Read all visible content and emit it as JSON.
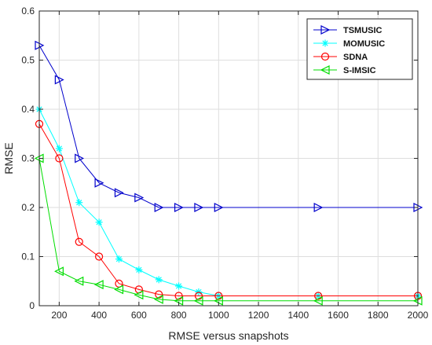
{
  "chart_data": {
    "type": "line",
    "title": "",
    "xlabel": "RMSE versus snapshots",
    "ylabel": "RMSE",
    "xlim": [
      100,
      2000
    ],
    "ylim": [
      0,
      0.6
    ],
    "xticks": [
      200,
      400,
      600,
      800,
      1000,
      1200,
      1400,
      1600,
      1800,
      2000
    ],
    "xtick_labels": [
      "200",
      "400",
      "600",
      "800",
      "1000",
      "1200",
      "1400",
      "1600",
      "1800",
      "2000"
    ],
    "yticks": [
      0,
      0.1,
      0.2,
      0.3,
      0.4,
      0.5,
      0.6
    ],
    "ytick_labels": [
      "0",
      "0.1",
      "0.2",
      "0.3",
      "0.4",
      "0.5",
      "0.6"
    ],
    "grid": true,
    "legend_position": "top-right",
    "series": [
      {
        "name": "TSMUSIC",
        "color": "#0000cc",
        "marker": "triangle-right",
        "x": [
          100,
          200,
          300,
          400,
          500,
          600,
          700,
          800,
          900,
          1000,
          1500,
          2000
        ],
        "y": [
          0.53,
          0.46,
          0.3,
          0.25,
          0.23,
          0.22,
          0.2,
          0.2,
          0.2,
          0.2,
          0.2,
          0.2
        ]
      },
      {
        "name": "MOMUSIC",
        "color": "#00ffff",
        "marker": "asterisk",
        "x": [
          100,
          200,
          300,
          400,
          500,
          600,
          700,
          800,
          900,
          1000,
          1500,
          2000
        ],
        "y": [
          0.4,
          0.32,
          0.21,
          0.17,
          0.095,
          0.073,
          0.053,
          0.04,
          0.028,
          0.02,
          0.02,
          0.02
        ]
      },
      {
        "name": "SDNA",
        "color": "#ff0000",
        "marker": "circle",
        "x": [
          100,
          200,
          300,
          400,
          500,
          600,
          700,
          800,
          900,
          1000,
          1500,
          2000
        ],
        "y": [
          0.37,
          0.3,
          0.13,
          0.1,
          0.045,
          0.033,
          0.023,
          0.02,
          0.02,
          0.02,
          0.02,
          0.02
        ]
      },
      {
        "name": "S-IMSIC",
        "color": "#00dd00",
        "marker": "triangle-left",
        "x": [
          100,
          200,
          300,
          400,
          500,
          600,
          700,
          800,
          900,
          1000,
          1500,
          2000
        ],
        "y": [
          0.3,
          0.07,
          0.05,
          0.043,
          0.033,
          0.022,
          0.013,
          0.01,
          0.01,
          0.01,
          0.01,
          0.01
        ]
      }
    ]
  }
}
